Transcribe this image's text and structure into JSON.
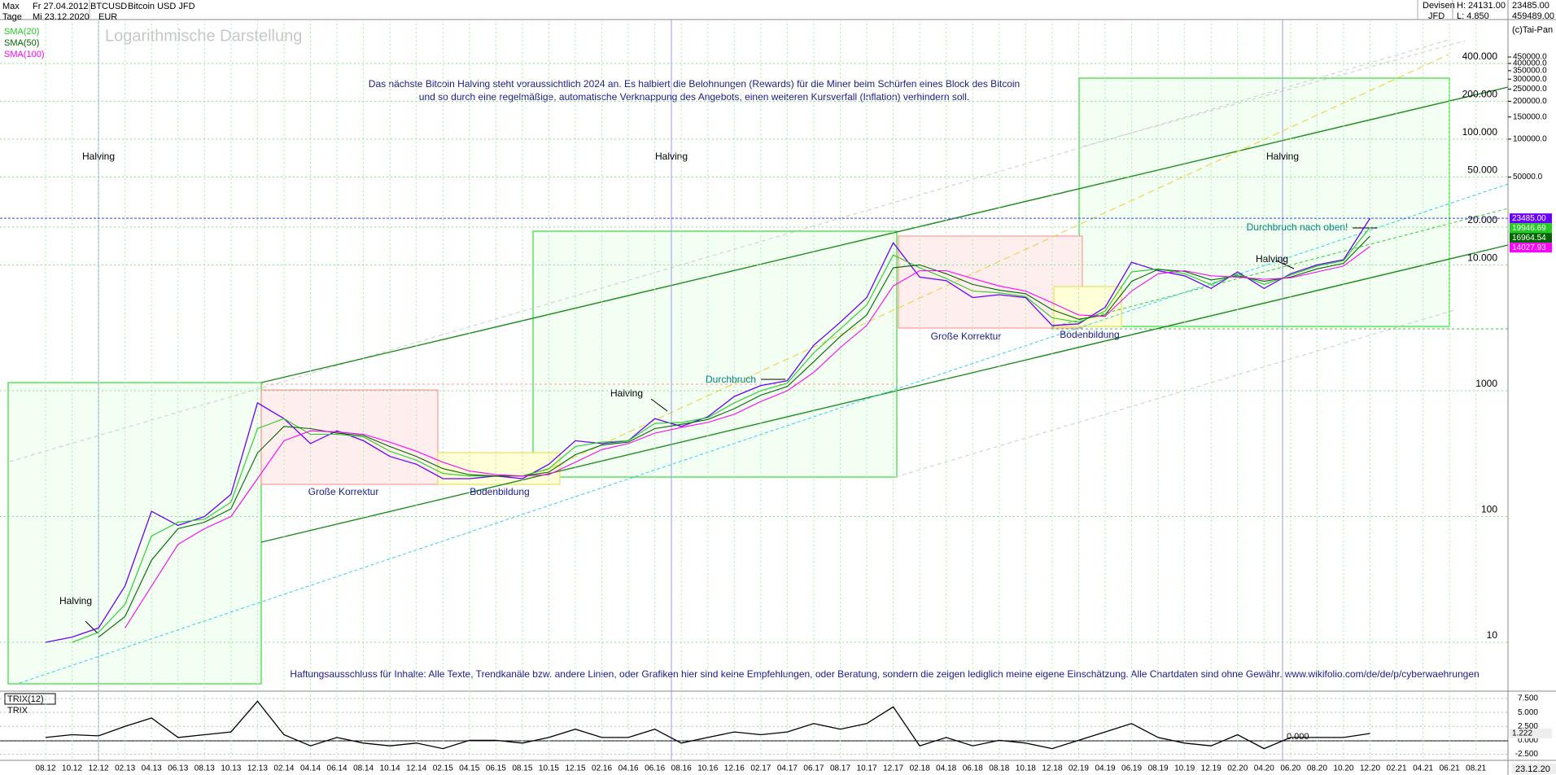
{
  "header": {
    "period": "Max",
    "start": "Fr 27.04.2012",
    "symbol": "BTCUSD",
    "interval": "Tage",
    "end": "Mi 23.12.2020",
    "currency": "EUR",
    "market": "Devisen",
    "broker": "JFD",
    "high": "H: 24131.00",
    "low": "L: 4.850",
    "last": "23485.00",
    "axis_max": "459489.00",
    "copyright": "(c)Tai-Pan",
    "cursor_date": "23.12.20"
  },
  "chart_data": [
    {
      "type": "line",
      "title": "Logarithmische Darstellung",
      "log_scale": true,
      "grid": true,
      "legend": "top-left",
      "annotations": [
        "Das nächste Bitcoin Halving steht voraussichtlich 2024 an. Es halbiert die Belohnungen (Rewards) für die Miner beim Schürfen eines Block des Bitcoin",
        "und so durch eine regelmäßige, automatische Verknappung des Angebots, einen weiteren Kursverfall (Inflation) verhindern soll.",
        "Halving",
        "Halving",
        "Halving",
        "Halving",
        "Halving",
        "Halving",
        "Große Korrektur",
        "Große Korrektur",
        "Bodenbildung",
        "Bodenbildung",
        "Durchbruch",
        "Durchbruch nach oben!",
        "Haftungsausschluss für Inhalte: Alle Texte, Trendkanäle bzw. andere Linien, oder Grafiken hier sind keine Empfehlungen, oder Beratung, sondern die zeigen lediglich meine eigene Einschätzung. Alle Chartdaten sind ohne Gewähr.  www.wikifolio.com/de/de/p/cyberwaehrungen"
      ],
      "categories": [
        "08.12",
        "10.12",
        "12.12",
        "02.13",
        "04.13",
        "06.13",
        "08.13",
        "10.13",
        "12.13",
        "02.14",
        "04.14",
        "06.14",
        "08.14",
        "10.14",
        "12.14",
        "02.15",
        "04.15",
        "06.15",
        "08.15",
        "10.15",
        "12.15",
        "02.16",
        "04.16",
        "06.16",
        "08.16",
        "10.16",
        "12.16",
        "02.17",
        "04.17",
        "06.17",
        "08.17",
        "10.17",
        "12.17",
        "02.18",
        "04.18",
        "06.18",
        "08.18",
        "10.18",
        "12.18",
        "02.19",
        "04.19",
        "06.19",
        "08.19",
        "10.19",
        "12.19",
        "02.20",
        "04.20",
        "06.20",
        "08.20",
        "10.20",
        "12.20",
        "02.21",
        "04.21",
        "06.21",
        "08.21"
      ],
      "series": [
        {
          "name": "Bitcoin USD JFD",
          "color": "#6a00ff",
          "last_label": "23485.00",
          "values": [
            10,
            11,
            13,
            28,
            110,
            85,
            100,
            150,
            800,
            600,
            380,
            480,
            400,
            300,
            260,
            200,
            200,
            210,
            200,
            260,
            400,
            380,
            400,
            600,
            520,
            620,
            900,
            1100,
            1200,
            2300,
            3500,
            5500,
            15000,
            8000,
            7500,
            5500,
            5800,
            5500,
            3300,
            3400,
            4600,
            10500,
            9000,
            8200,
            6500,
            8800,
            6500,
            8500,
            10000,
            11000,
            23485,
            null,
            null,
            null,
            null
          ]
        },
        {
          "name": "SMA(20)",
          "color": "#22cc22",
          "last_label": "19946.69",
          "values": [
            null,
            10,
            12,
            20,
            70,
            90,
            95,
            130,
            500,
            600,
            450,
            450,
            430,
            330,
            280,
            220,
            210,
            210,
            210,
            240,
            360,
            390,
            400,
            550,
            560,
            610,
            800,
            1000,
            1150,
            2000,
            3100,
            4800,
            12000,
            9500,
            7800,
            6200,
            6000,
            5600,
            3800,
            3500,
            4300,
            8800,
            9300,
            8500,
            7000,
            8500,
            7000,
            8300,
            9800,
            10800,
            19946.69,
            null,
            null,
            null,
            null
          ]
        },
        {
          "name": "SMA(50)",
          "color": "#006600",
          "last_label": "16964.54",
          "values": [
            null,
            null,
            11,
            16,
            45,
            80,
            90,
            115,
            320,
            520,
            500,
            460,
            440,
            360,
            300,
            240,
            215,
            210,
            210,
            225,
            310,
            370,
            390,
            500,
            540,
            590,
            720,
            920,
            1080,
            1700,
            2700,
            4000,
            9500,
            10000,
            8500,
            7000,
            6300,
            5900,
            4400,
            3700,
            4000,
            7400,
            9200,
            8900,
            7600,
            8200,
            7400,
            8000,
            9300,
            10300,
            16964.54,
            null,
            null,
            null,
            null
          ]
        },
        {
          "name": "SMA(100)",
          "color": "#ff00ff",
          "last_label": "14027.93",
          "values": [
            null,
            null,
            null,
            13,
            28,
            60,
            80,
            100,
            200,
            400,
            480,
            470,
            450,
            390,
            330,
            270,
            230,
            215,
            210,
            215,
            270,
            340,
            380,
            460,
            510,
            560,
            650,
            820,
            1000,
            1400,
            2200,
            3300,
            6800,
            9000,
            9000,
            7800,
            6800,
            6200,
            5000,
            4000,
            3900,
            6200,
            8500,
            9000,
            8200,
            8000,
            7700,
            7900,
            8800,
            9800,
            14027.93,
            null,
            null,
            null,
            null
          ]
        }
      ],
      "ylim": [
        4.15,
        893000
      ],
      "yticks": [
        10,
        100,
        1000,
        {
          "value": 10000,
          "label": "10.000"
        },
        {
          "value": 20000,
          "label": "20.000"
        },
        {
          "value": 50000,
          "label": "50.000"
        },
        {
          "value": 100000,
          "label": "100.000"
        },
        {
          "value": 200000,
          "label": "200.000"
        },
        {
          "value": 400000,
          "label": "400.000"
        }
      ],
      "right_ticks": [
        {
          "value": 50000,
          "label": "50000.0"
        },
        {
          "value": 100000,
          "label": "100000.0"
        },
        {
          "value": 150000,
          "label": "150000.0"
        },
        {
          "value": 200000,
          "label": "200000.0"
        },
        {
          "value": 250000,
          "label": "250000.0"
        },
        {
          "value": 300000,
          "label": "300000.0"
        },
        {
          "value": 350000,
          "label": "350000.0"
        },
        {
          "value": 400000,
          "label": "400000.0"
        },
        {
          "value": 450000,
          "label": "450000.0"
        }
      ]
    },
    {
      "type": "line",
      "title": "TRIX(12)",
      "annotations": [
        "0.000"
      ],
      "series": [
        {
          "name": "TRIX",
          "color": "#000000",
          "last_label": "1.222",
          "values": [
            0.5,
            1,
            0.8,
            2.5,
            4,
            0.5,
            1,
            1.5,
            7,
            1,
            -1,
            0.5,
            -0.5,
            -1,
            -0.5,
            -1.5,
            0,
            0,
            -0.5,
            0.5,
            2,
            0.5,
            0.5,
            2,
            -0.5,
            0.5,
            1.5,
            1,
            1.5,
            3,
            2,
            3,
            6,
            -1,
            0.5,
            -1,
            0,
            -0.5,
            -1.5,
            0,
            1.5,
            3,
            0.5,
            -0.5,
            -1,
            1,
            -1.5,
            0.5,
            0.5,
            0.5,
            1.222,
            null,
            null,
            null,
            null
          ]
        }
      ],
      "ylim": [
        -3.45,
        8.67
      ],
      "yticks": [
        {
          "value": 7.5,
          "label": "7.500"
        },
        {
          "value": 5,
          "label": "5.000"
        },
        {
          "value": 2.5,
          "label": "2.500"
        },
        {
          "value": 0,
          "label": "0.000"
        },
        {
          "value": -2.5,
          "label": "-2.500"
        }
      ]
    }
  ]
}
